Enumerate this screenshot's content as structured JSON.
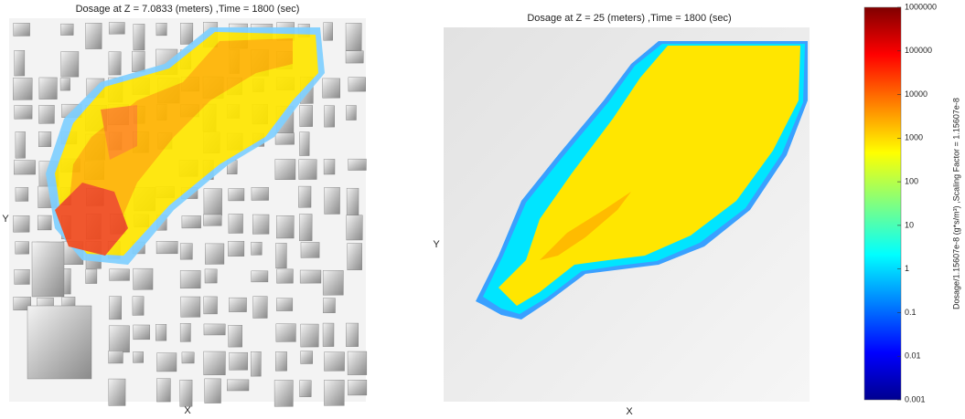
{
  "panels": [
    {
      "title": "Dosage at Z = 7.0833 (meters) ,Time = 1800 (sec)",
      "xlabel": "X",
      "ylabel": "Y"
    },
    {
      "title": "Dosage at Z = 25 (meters) ,Time = 1800 (sec)",
      "xlabel": "X",
      "ylabel": "Y"
    }
  ],
  "colorbar": {
    "label": "Dosage/1.15607e-8 (g*s/m³) ,Scaling Factor = 1.15607e-8",
    "scale": "log",
    "lim": [
      0.001,
      1000000
    ],
    "ticks": [
      1000000,
      100000,
      10000,
      1000,
      100,
      10,
      1,
      0.1,
      0.01,
      0.001
    ]
  }
}
